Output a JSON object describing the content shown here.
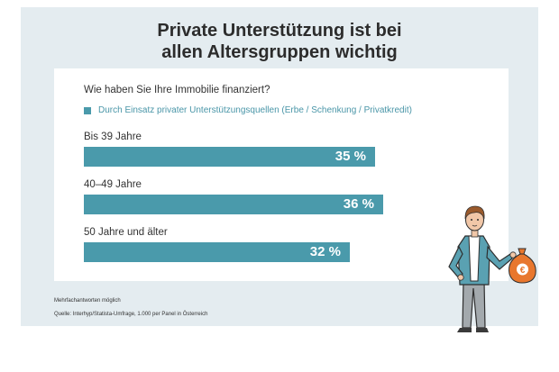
{
  "title_line1": "Private Unterstützung ist bei",
  "title_line2": "allen Altersgruppen wichtig",
  "question": "Wie haben Sie Ihre Immobilie finanziert?",
  "footnote1": "Mehrfachantworten möglich",
  "footnote2": "Quelle: Interhyp/Statista-Umfrage, 1.000 per Panel in Österreich",
  "colors": {
    "bar": "#4a9aab",
    "panel": "#e4ecf0",
    "bag": "#e8772e"
  },
  "icons": {
    "person": "man-holding-money-bag-illustration",
    "euro": "euro-icon"
  },
  "chart_data": {
    "type": "bar",
    "orientation": "horizontal",
    "categories": [
      "Bis 39 Jahre",
      "40–49 Jahre",
      "50 Jahre und älter"
    ],
    "series": [
      {
        "name": "Durch Einsatz privater Unterstützungsquellen (Erbe / Schenkung / Privatkredit)",
        "values": [
          35,
          36,
          32
        ],
        "labels": [
          "35 %",
          "36 %",
          "32 %"
        ]
      }
    ],
    "unit": "%",
    "xlim": [
      0,
      40
    ],
    "grid": false,
    "legend": "top-left"
  }
}
